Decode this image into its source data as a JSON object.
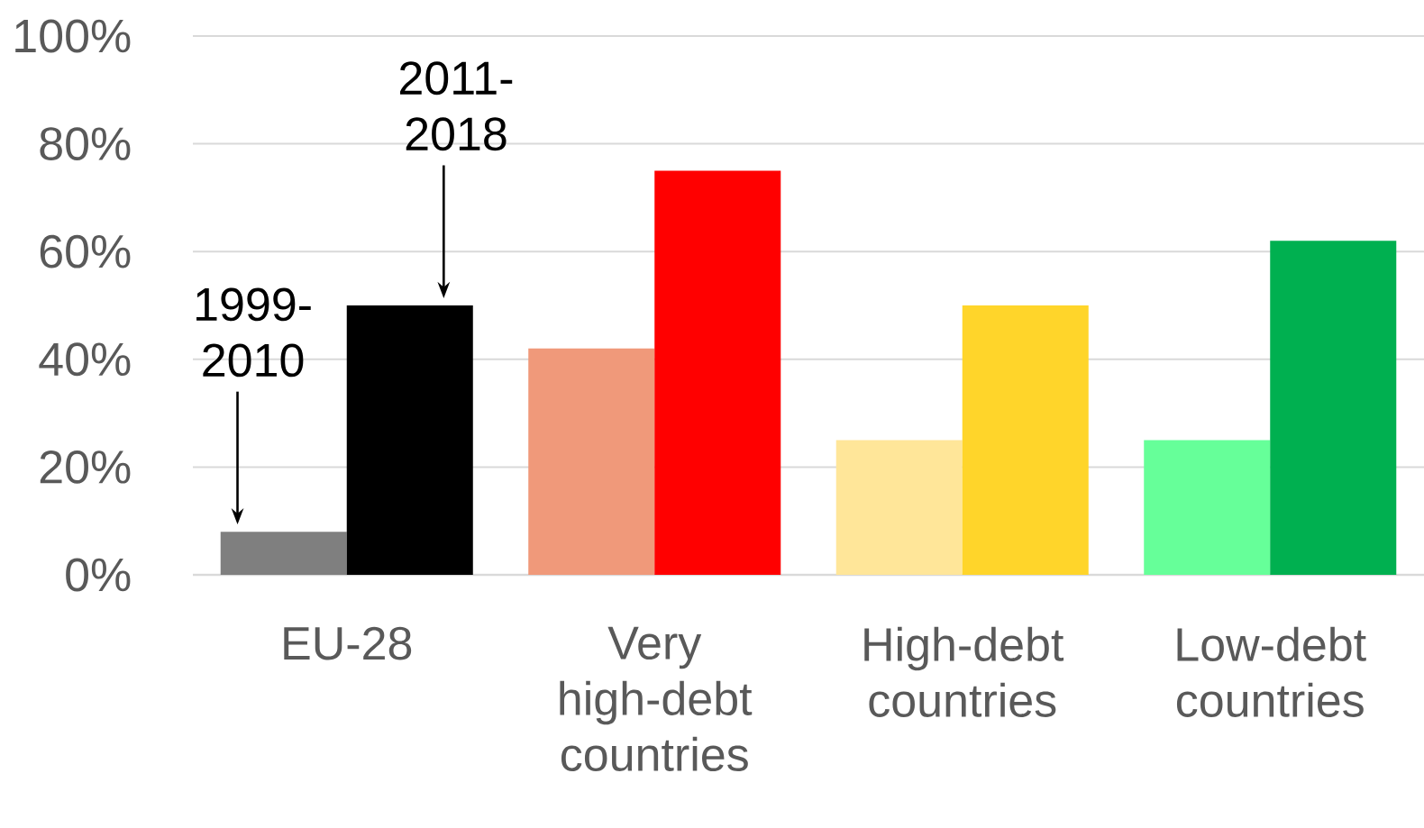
{
  "chart_data": {
    "type": "bar",
    "categories": [
      "EU-28",
      "Very high-debt countries",
      "High-debt countries",
      "Low-debt countries"
    ],
    "series": [
      {
        "colors": [
          "#7f7f7f",
          "#f0997a",
          "#ffe699",
          "#66ff99"
        ],
        "values": [
          8,
          42,
          25,
          25
        ]
      },
      {
        "colors": [
          "#000000",
          "#ff0000",
          "#ffd52a",
          "#00b050"
        ],
        "values": [
          50,
          75,
          50,
          62
        ]
      }
    ],
    "annotations": [
      "1999-2010",
      "2011-2018"
    ],
    "ylim": [
      0,
      100
    ],
    "yticks": [
      {
        "value": 0,
        "label": "0%"
      },
      {
        "value": 20,
        "label": "20%"
      },
      {
        "value": 40,
        "label": "40%"
      },
      {
        "value": 60,
        "label": "60%"
      },
      {
        "value": 80,
        "label": "80%"
      },
      {
        "value": 100,
        "label": "100%"
      }
    ],
    "grid": "y"
  }
}
